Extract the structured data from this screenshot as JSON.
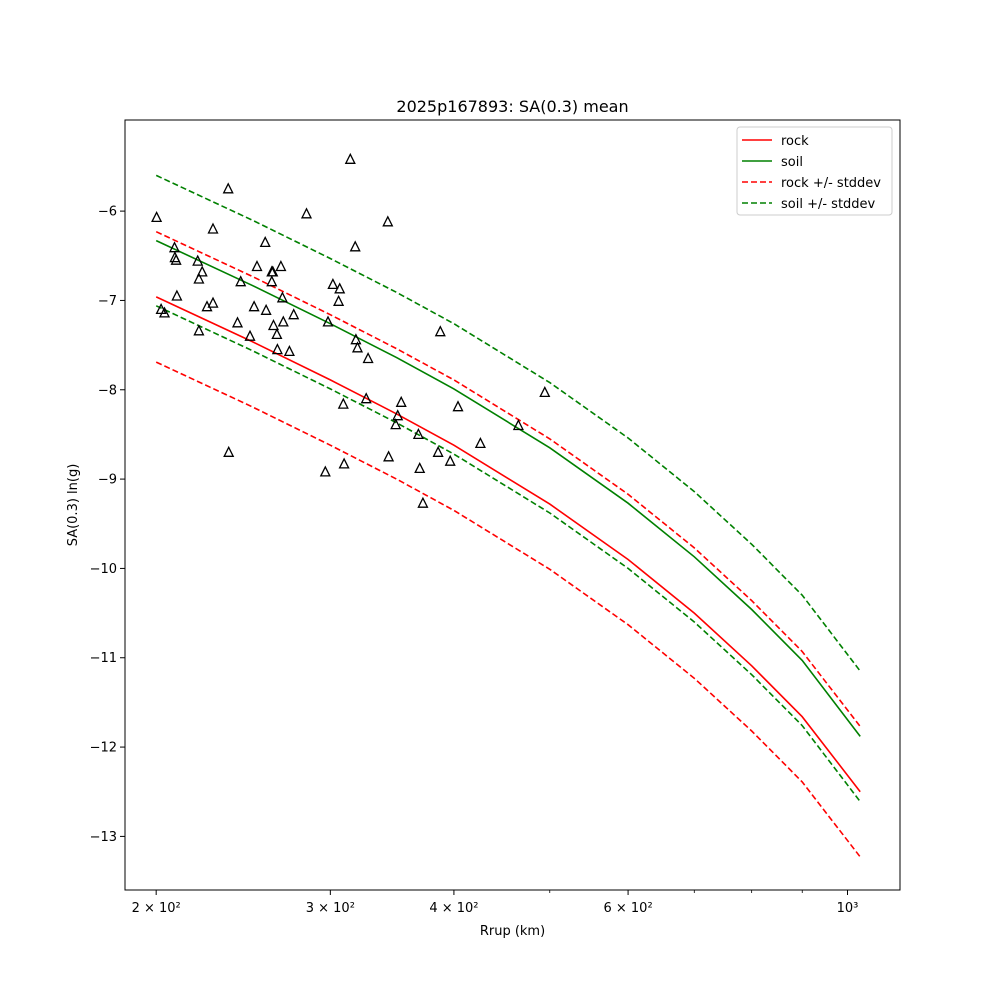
{
  "chart_data": {
    "type": "scatter",
    "title": "2025p167893: SA(0.3) mean",
    "xlabel": "Rrup (km)",
    "ylabel": "SA(0.3) ln(g)",
    "xscale": "log",
    "xlim": [
      186,
      1130
    ],
    "ylim": [
      -13.6,
      -4.98
    ],
    "grid": false,
    "legend_position": "top-right",
    "x_tick_labels": [
      {
        "value": 200,
        "label": "2 × 10²"
      },
      {
        "value": 300,
        "label": "3 × 10²"
      },
      {
        "value": 400,
        "label": "4 × 10²"
      },
      {
        "value": 600,
        "label": "6 × 10²"
      },
      {
        "value": 1000,
        "label": "10³"
      }
    ],
    "x_minor_ticks": [
      500,
      700,
      800,
      900
    ],
    "y_ticks": [
      {
        "value": -6,
        "label": "−6"
      },
      {
        "value": -7,
        "label": "−7"
      },
      {
        "value": -8,
        "label": "−8"
      },
      {
        "value": -9,
        "label": "−9"
      },
      {
        "value": -10,
        "label": "−10"
      },
      {
        "value": -11,
        "label": "−11"
      },
      {
        "value": -12,
        "label": "−12"
      },
      {
        "value": -13,
        "label": "−13"
      }
    ],
    "series": [
      {
        "name": "rock",
        "color": "#ff0000",
        "style": "solid",
        "x": [
          200,
          250,
          300,
          350,
          400,
          500,
          600,
          700,
          800,
          900,
          1030
        ],
        "y": [
          -6.96,
          -7.46,
          -7.89,
          -8.27,
          -8.62,
          -9.28,
          -9.9,
          -10.5,
          -11.09,
          -11.66,
          -12.5
        ]
      },
      {
        "name": "soil",
        "color": "#008000",
        "style": "solid",
        "x": [
          200,
          250,
          300,
          350,
          400,
          500,
          600,
          700,
          800,
          900,
          1030
        ],
        "y": [
          -6.33,
          -6.83,
          -7.26,
          -7.64,
          -7.99,
          -8.65,
          -9.27,
          -9.87,
          -10.46,
          -11.03,
          -11.88
        ]
      },
      {
        "name": "rock +/- stddev",
        "color": "#ff0000",
        "style": "dashed",
        "x": [
          200,
          250,
          300,
          350,
          400,
          500,
          600,
          700,
          800,
          900,
          1030
        ],
        "y": [
          -6.23,
          -6.73,
          -7.16,
          -7.54,
          -7.89,
          -8.55,
          -9.17,
          -9.77,
          -10.36,
          -10.93,
          -11.77
        ]
      },
      {
        "name": "",
        "color": "#ff0000",
        "style": "dashed",
        "x": [
          200,
          250,
          300,
          350,
          400,
          500,
          600,
          700,
          800,
          900,
          1030
        ],
        "y": [
          -7.69,
          -8.19,
          -8.62,
          -9.0,
          -9.35,
          -10.01,
          -10.63,
          -11.23,
          -11.82,
          -12.39,
          -13.23
        ]
      },
      {
        "name": "soil +/- stddev",
        "color": "#008000",
        "style": "dashed",
        "x": [
          200,
          250,
          300,
          350,
          400,
          500,
          600,
          700,
          800,
          900,
          1030
        ],
        "y": [
          -5.6,
          -6.1,
          -6.53,
          -6.91,
          -7.26,
          -7.92,
          -8.54,
          -9.14,
          -9.73,
          -10.3,
          -11.15
        ]
      },
      {
        "name": "",
        "color": "#008000",
        "style": "dashed",
        "x": [
          200,
          250,
          300,
          350,
          400,
          500,
          600,
          700,
          800,
          900,
          1030
        ],
        "y": [
          -7.06,
          -7.56,
          -7.99,
          -8.37,
          -8.72,
          -9.38,
          -10.0,
          -10.6,
          -11.19,
          -11.76,
          -12.61
        ]
      }
    ],
    "observations": {
      "marker": "triangle",
      "color": "#000000",
      "points": [
        [
          200.2,
          -6.07
        ],
        [
          202.3,
          -7.1
        ],
        [
          203.9,
          -7.14
        ],
        [
          208.7,
          -6.41
        ],
        [
          208.9,
          -6.52
        ],
        [
          209.5,
          -6.55
        ],
        [
          209.9,
          -6.95
        ],
        [
          220.3,
          -6.56
        ],
        [
          220.9,
          -6.76
        ],
        [
          220.9,
          -7.34
        ],
        [
          222.6,
          -6.68
        ],
        [
          225.1,
          -7.07
        ],
        [
          228.3,
          -6.2
        ],
        [
          228.3,
          -7.03
        ],
        [
          236.5,
          -5.75
        ],
        [
          236.8,
          -8.7
        ],
        [
          241.7,
          -7.25
        ],
        [
          243.5,
          -6.79
        ],
        [
          248.8,
          -7.4
        ],
        [
          251.2,
          -7.07
        ],
        [
          252.9,
          -6.62
        ],
        [
          257.8,
          -6.35
        ],
        [
          258.3,
          -7.11
        ],
        [
          261.8,
          -6.68
        ],
        [
          261.8,
          -6.79
        ],
        [
          262.4,
          -6.68
        ],
        [
          262.8,
          -7.28
        ],
        [
          264.9,
          -7.38
        ],
        [
          265.2,
          -7.55
        ],
        [
          267.4,
          -6.62
        ],
        [
          268.3,
          -6.97
        ],
        [
          268.9,
          -7.24
        ],
        [
          272.7,
          -7.57
        ],
        [
          275.5,
          -7.16
        ],
        [
          283.8,
          -6.03
        ],
        [
          296.5,
          -8.92
        ],
        [
          298.4,
          -7.24
        ],
        [
          301.8,
          -6.82
        ],
        [
          305.8,
          -7.01
        ],
        [
          306.6,
          -6.87
        ],
        [
          309.2,
          -8.16
        ],
        [
          309.8,
          -8.83
        ],
        [
          314.3,
          -5.42
        ],
        [
          317.9,
          -6.4
        ],
        [
          318.4,
          -7.44
        ],
        [
          319.6,
          -7.53
        ],
        [
          326.1,
          -8.1
        ],
        [
          327.6,
          -7.65
        ],
        [
          342.9,
          -6.12
        ],
        [
          343.6,
          -8.75
        ],
        [
          349.3,
          -8.39
        ],
        [
          350.9,
          -8.29
        ],
        [
          353.8,
          -8.14
        ],
        [
          368.3,
          -8.5
        ],
        [
          369.4,
          -8.88
        ],
        [
          372.1,
          -9.27
        ],
        [
          385.5,
          -8.7
        ],
        [
          387.5,
          -7.35
        ],
        [
          396.6,
          -8.8
        ],
        [
          403.8,
          -8.19
        ],
        [
          425.4,
          -8.6
        ],
        [
          464.8,
          -8.4
        ],
        [
          494.3,
          -8.03
        ]
      ]
    }
  }
}
